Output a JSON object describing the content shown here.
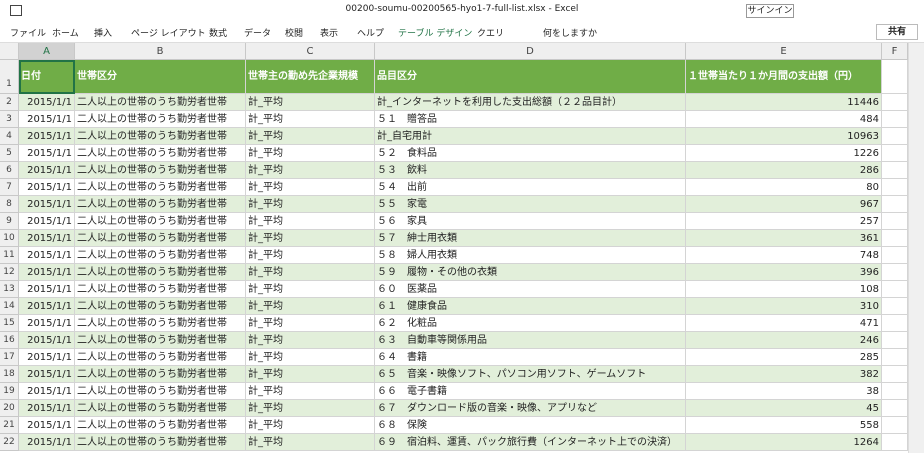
{
  "title_bar": {
    "file_title": "00200-soumu-00200565-hyo1-7-full-list.xlsx  -  Excel",
    "sign_in": "サインイン"
  },
  "ribbon": {
    "tabs": [
      "ファイル",
      "ホーム",
      "挿入",
      "ページ レイアウト",
      "数式",
      "データ",
      "校閲",
      "表示",
      "ヘルプ",
      "テーブル デザイン",
      "クエリ"
    ],
    "search": "何をしますか",
    "share": "共有"
  },
  "sheet": {
    "columns": [
      "A",
      "B",
      "C",
      "D",
      "E",
      "F"
    ],
    "row_numbers": [
      1,
      2,
      3,
      4,
      5,
      6,
      7,
      8,
      9,
      10,
      11,
      12,
      13,
      14,
      15,
      16,
      17,
      18,
      19,
      20,
      21,
      22
    ],
    "header": [
      "日付",
      "世帯区分",
      "世帯主の勤め先企業規模",
      "品目区分",
      "１世帯当たり１か月間の支出額（円）"
    ],
    "rows": [
      [
        "2015/1/1",
        "二人以上の世帯のうち勤労者世帯",
        "計_平均",
        "計_インターネットを利用した支出総額（２２品目計）",
        11446
      ],
      [
        "2015/1/1",
        "二人以上の世帯のうち勤労者世帯",
        "計_平均",
        "５１　贈答品",
        484
      ],
      [
        "2015/1/1",
        "二人以上の世帯のうち勤労者世帯",
        "計_平均",
        "計_自宅用計",
        10963
      ],
      [
        "2015/1/1",
        "二人以上の世帯のうち勤労者世帯",
        "計_平均",
        "５２　食料品",
        1226
      ],
      [
        "2015/1/1",
        "二人以上の世帯のうち勤労者世帯",
        "計_平均",
        "５３　飲料",
        286
      ],
      [
        "2015/1/1",
        "二人以上の世帯のうち勤労者世帯",
        "計_平均",
        "５４　出前",
        80
      ],
      [
        "2015/1/1",
        "二人以上の世帯のうち勤労者世帯",
        "計_平均",
        "５５　家電",
        967
      ],
      [
        "2015/1/1",
        "二人以上の世帯のうち勤労者世帯",
        "計_平均",
        "５６　家具",
        257
      ],
      [
        "2015/1/1",
        "二人以上の世帯のうち勤労者世帯",
        "計_平均",
        "５７　紳士用衣類",
        361
      ],
      [
        "2015/1/1",
        "二人以上の世帯のうち勤労者世帯",
        "計_平均",
        "５８　婦人用衣類",
        748
      ],
      [
        "2015/1/1",
        "二人以上の世帯のうち勤労者世帯",
        "計_平均",
        "５９　履物・その他の衣類",
        396
      ],
      [
        "2015/1/1",
        "二人以上の世帯のうち勤労者世帯",
        "計_平均",
        "６０　医薬品",
        108
      ],
      [
        "2015/1/1",
        "二人以上の世帯のうち勤労者世帯",
        "計_平均",
        "６１　健康食品",
        310
      ],
      [
        "2015/1/1",
        "二人以上の世帯のうち勤労者世帯",
        "計_平均",
        "６２　化粧品",
        471
      ],
      [
        "2015/1/1",
        "二人以上の世帯のうち勤労者世帯",
        "計_平均",
        "６３　自動車等関係用品",
        246
      ],
      [
        "2015/1/1",
        "二人以上の世帯のうち勤労者世帯",
        "計_平均",
        "６４　書籍",
        285
      ],
      [
        "2015/1/1",
        "二人以上の世帯のうち勤労者世帯",
        "計_平均",
        "６５　音楽・映像ソフト、パソコン用ソフト、ゲームソフト",
        382
      ],
      [
        "2015/1/1",
        "二人以上の世帯のうち勤労者世帯",
        "計_平均",
        "６６　電子書籍",
        38
      ],
      [
        "2015/1/1",
        "二人以上の世帯のうち勤労者世帯",
        "計_平均",
        "６７　ダウンロード版の音楽・映像、アプリなど",
        45
      ],
      [
        "2015/1/1",
        "二人以上の世帯のうち勤労者世帯",
        "計_平均",
        "６８　保険",
        558
      ],
      [
        "2015/1/1",
        "二人以上の世帯のうち勤労者世帯",
        "計_平均",
        "６９　宿泊料、運賃、パック旅行費（インターネット上での決済）",
        1264
      ]
    ]
  }
}
